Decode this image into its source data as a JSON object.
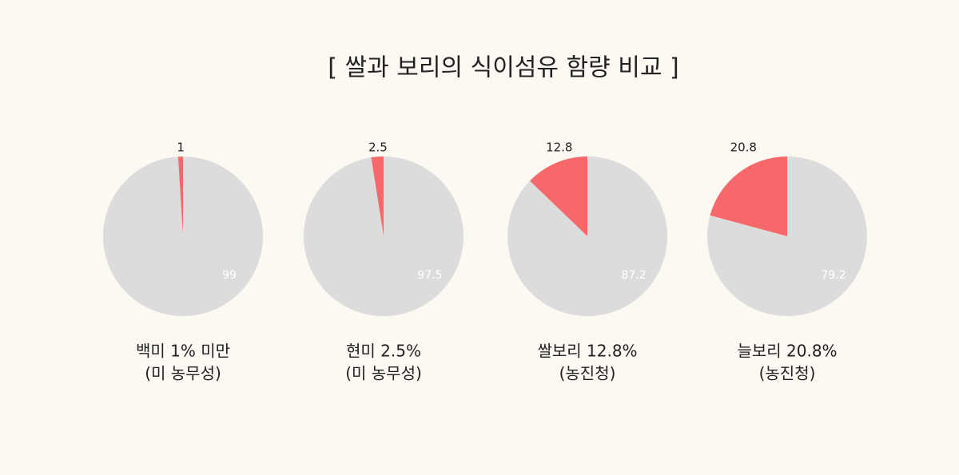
{
  "title": "[ 쌀과 보리의 식이섬유 함량 비교 ]",
  "chart_data": [
    {
      "type": "pie",
      "values": [
        1,
        99
      ],
      "colors": [
        "#f7686a",
        "#dcdcdc"
      ],
      "caption": [
        "백미 1% 미만",
        "(미 농무성)"
      ]
    },
    {
      "type": "pie",
      "values": [
        2.5,
        97.5
      ],
      "colors": [
        "#f7686a",
        "#dcdcdc"
      ],
      "caption": [
        "현미 2.5%",
        "(미 농무성)"
      ]
    },
    {
      "type": "pie",
      "values": [
        12.8,
        87.2
      ],
      "colors": [
        "#f7686a",
        "#dcdcdc"
      ],
      "caption": [
        "쌀보리 12.8%",
        "(농진청)"
      ]
    },
    {
      "type": "pie",
      "values": [
        20.8,
        79.2
      ],
      "colors": [
        "#f7686a",
        "#dcdcdc"
      ],
      "caption": [
        "늘보리 20.8%",
        "(농진청)"
      ]
    }
  ]
}
